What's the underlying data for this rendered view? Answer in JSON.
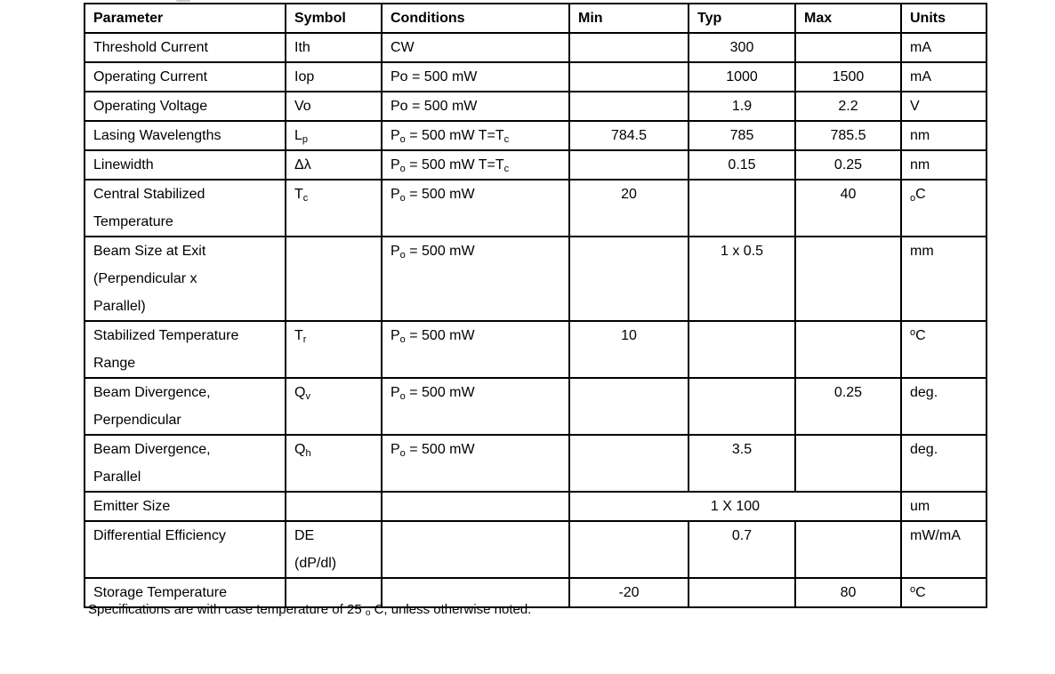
{
  "page": {
    "background": "#ffffff",
    "text_color": "#000000",
    "footnote": [
      "Specifications are with case temperature of 25 ",
      {
        "sub": "o"
      },
      " C, unless otherwise noted."
    ]
  },
  "table": {
    "border_color": "#000000",
    "columns": [
      "Parameter",
      "Symbol",
      "Conditions",
      "Min",
      "Typ",
      "Max",
      "Units"
    ],
    "rows": [
      {
        "parameter": "Threshold Current",
        "symbol": "Ith",
        "conditions": "CW",
        "min": "",
        "typ": "300",
        "max": "",
        "units": "mA"
      },
      {
        "parameter": "Operating Current",
        "symbol": "Iop",
        "conditions": "Po = 500 mW",
        "min": "",
        "typ": "1000",
        "max": "1500",
        "units": "mA"
      },
      {
        "parameter": "Operating Voltage",
        "symbol": "Vo",
        "conditions": "Po = 500 mW",
        "min": "",
        "typ": "1.9",
        "max": "2.2",
        "units": "V"
      },
      {
        "parameter": "Lasing Wavelengths",
        "symbol": [
          "L",
          {
            "sub": "p"
          }
        ],
        "conditions": [
          "P",
          {
            "sub": "o"
          },
          " = 500 mW T=T",
          {
            "sub": "c"
          }
        ],
        "min": "784.5",
        "typ": "785",
        "max": "785.5",
        "units": "nm"
      },
      {
        "parameter": "Linewidth",
        "symbol": "Δλ",
        "conditions": [
          "P",
          {
            "sub": "o"
          },
          " = 500 mW T=T",
          {
            "sub": "c"
          }
        ],
        "min": "",
        "typ": "0.15",
        "max": "0.25",
        "units": "nm"
      },
      {
        "parameter": [
          "Central Stabilized ",
          {
            "br": true
          },
          "Temperature"
        ],
        "symbol": [
          "T",
          {
            "sub": "c"
          }
        ],
        "conditions": [
          "P",
          {
            "sub": "o"
          },
          " = 500 mW"
        ],
        "min": "20",
        "typ": "",
        "max": "40",
        "units": [
          {
            "sub": "o"
          },
          "C"
        ]
      },
      {
        "parameter": [
          "Beam Size at Exit ",
          {
            "br": true
          },
          "(Perpendicular x ",
          {
            "br": true
          },
          "Parallel)"
        ],
        "symbol": "",
        "conditions": [
          "P",
          {
            "sub": "o"
          },
          " = 500 mW"
        ],
        "min": "",
        "typ": "1 x 0.5",
        "max": "",
        "units": "mm"
      },
      {
        "parameter": [
          "Stabilized Temperature ",
          {
            "br": true
          },
          "Range"
        ],
        "symbol": [
          "T",
          {
            "sub": "r"
          }
        ],
        "conditions": [
          "P",
          {
            "sub": "o"
          },
          " = 500 mW"
        ],
        "min": "10",
        "typ": "",
        "max": "",
        "units": [
          {
            "sup": "o"
          },
          "C"
        ]
      },
      {
        "parameter": [
          "Beam Divergence, ",
          {
            "br": true
          },
          "Perpendicular"
        ],
        "symbol": [
          "Q",
          {
            "sub": "v"
          }
        ],
        "conditions": [
          "P",
          {
            "sub": "o"
          },
          " = 500 mW"
        ],
        "min": "",
        "typ": "",
        "max": "0.25",
        "units": "deg."
      },
      {
        "parameter": [
          "Beam Divergence, ",
          {
            "br": true
          },
          "Parallel"
        ],
        "symbol": [
          "Q",
          {
            "sub": "h"
          }
        ],
        "conditions": [
          "P",
          {
            "sub": "o"
          },
          " = 500 mW"
        ],
        "min": "",
        "typ": "3.5",
        "max": "",
        "units": "deg."
      },
      {
        "parameter": "Emitter Size",
        "symbol": "",
        "conditions": "",
        "min_typ_max": "1 X 100",
        "units": "um"
      },
      {
        "parameter": "Differential Efficiency",
        "symbol": [
          "DE",
          {
            "br": true
          },
          "(dP/dl)"
        ],
        "conditions": "",
        "min": "",
        "typ": "0.7",
        "max": "",
        "units": "mW/mA"
      },
      {
        "parameter": "Storage Temperature",
        "symbol": "",
        "conditions": "",
        "min": "-20",
        "typ": "",
        "max": "80",
        "units": [
          {
            "sup": "o"
          },
          "C"
        ]
      }
    ]
  }
}
